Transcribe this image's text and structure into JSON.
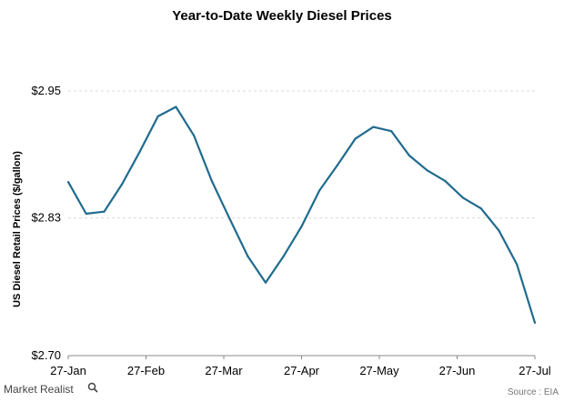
{
  "chart_data": {
    "type": "line",
    "title": "Year-to-Date  Weekly  Diesel  Prices",
    "ylabel": "US Diesel Retail Prices ($/gallon)",
    "xlabel": "",
    "x_tick_labels": [
      "27-Jan",
      "27-Feb",
      "27-Mar",
      "27-Apr",
      "27-May",
      "27-Jun",
      "27-Jul"
    ],
    "y_ticks": [
      2.7,
      2.83,
      2.95
    ],
    "y_tick_labels": [
      "$2.70",
      "$2.83",
      "$2.95"
    ],
    "ylim": [
      2.7,
      2.95
    ],
    "grid": true,
    "color": "#1f6b8e",
    "series": [
      {
        "x": [
          "27-Jan",
          "3-Feb",
          "10-Feb",
          "17-Feb",
          "24-Feb",
          "3-Mar",
          "10-Mar",
          "17-Mar",
          "24-Mar",
          "31-Mar",
          "7-Apr",
          "14-Apr",
          "21-Apr",
          "28-Apr",
          "5-May",
          "12-May",
          "19-May",
          "26-May",
          "2-Jun",
          "9-Jun",
          "16-Jun",
          "23-Jun",
          "30-Jun",
          "7-Jul",
          "14-Jul",
          "21-Jul",
          "28-Jul"
        ],
        "values": [
          2.864,
          2.834,
          2.836,
          2.862,
          2.893,
          2.926,
          2.935,
          2.908,
          2.865,
          2.829,
          2.794,
          2.769,
          2.794,
          2.822,
          2.856,
          2.88,
          2.905,
          2.916,
          2.912,
          2.889,
          2.875,
          2.865,
          2.849,
          2.839,
          2.818,
          2.786,
          2.731
        ]
      }
    ]
  },
  "source": "Source : EIA",
  "brand": "Market Realist",
  "brand_icon": "magnifier-icon"
}
